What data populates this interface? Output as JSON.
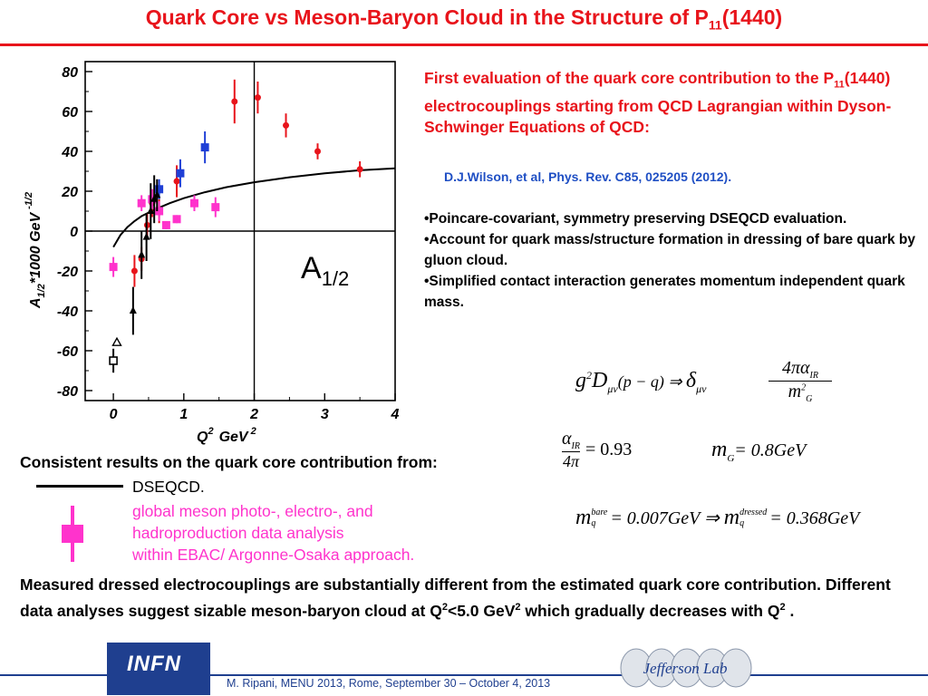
{
  "title": {
    "main": "Quark Core vs Meson-Baryon Cloud  in the Structure of P",
    "sub": "11",
    "tail": "(1440)"
  },
  "chart_data": {
    "type": "scatter",
    "xlabel_base": "Q",
    "xlabel_sup": "2",
    "xlabel_unit": "GeV",
    "xlabel_unit_sup": "2",
    "ylabel_parts": [
      "A",
      "1/2",
      "*1000 GeV",
      "-1/2"
    ],
    "annotation": "A",
    "annotation_sub": "1/2",
    "xlim": [
      -0.4,
      4
    ],
    "ylim": [
      -85,
      85
    ],
    "x_ticks": [
      "0",
      "1",
      "2",
      "3",
      "4"
    ],
    "y_ticks": [
      "80",
      "60",
      "40",
      "20",
      "0",
      "-20",
      "-40",
      "-60",
      "-80"
    ],
    "vertical_line_x": 2.0,
    "series": [
      {
        "marker": "circle",
        "color": "#e8141b",
        "points": [
          {
            "x": 0.3,
            "y": -20,
            "err": 8
          },
          {
            "x": 0.4,
            "y": -14,
            "err": 6
          },
          {
            "x": 0.48,
            "y": 3,
            "err": 6
          },
          {
            "x": 0.55,
            "y": 14,
            "err": 7
          },
          {
            "x": 0.65,
            "y": 10,
            "err": 6
          },
          {
            "x": 0.9,
            "y": 25,
            "err": 8
          },
          {
            "x": 1.72,
            "y": 65,
            "err": 11
          },
          {
            "x": 2.05,
            "y": 67,
            "err": 8
          },
          {
            "x": 2.45,
            "y": 53,
            "err": 6
          },
          {
            "x": 2.9,
            "y": 40,
            "err": 4
          },
          {
            "x": 3.5,
            "y": 31,
            "err": 4
          }
        ]
      },
      {
        "marker": "square",
        "color": "#ff33cc",
        "points": [
          {
            "x": 0.0,
            "y": -18,
            "err": 5
          },
          {
            "x": 0.4,
            "y": 14,
            "err": 4
          },
          {
            "x": 0.55,
            "y": 16,
            "err": 5
          },
          {
            "x": 0.65,
            "y": 10,
            "err": 5
          },
          {
            "x": 0.75,
            "y": 3,
            "err": 2
          },
          {
            "x": 0.9,
            "y": 6,
            "err": 2
          },
          {
            "x": 1.15,
            "y": 14,
            "err": 4
          },
          {
            "x": 1.45,
            "y": 12,
            "err": 5
          }
        ]
      },
      {
        "marker": "square",
        "color": "#1f3fd6",
        "points": [
          {
            "x": 0.65,
            "y": 21,
            "err": 5
          },
          {
            "x": 0.95,
            "y": 29,
            "err": 7
          },
          {
            "x": 1.3,
            "y": 42,
            "err": 8
          }
        ]
      },
      {
        "marker": "filled-triangle",
        "color": "#000000",
        "points": [
          {
            "x": 0.28,
            "y": -40,
            "err": 12
          },
          {
            "x": 0.4,
            "y": -12,
            "err": 12
          },
          {
            "x": 0.47,
            "y": -3,
            "err": 12
          },
          {
            "x": 0.53,
            "y": 10,
            "err": 14
          },
          {
            "x": 0.58,
            "y": 16,
            "err": 12
          },
          {
            "x": 0.62,
            "y": 18,
            "err": 8
          }
        ]
      },
      {
        "marker": "open-square",
        "color": "#000000",
        "points": [
          {
            "x": 0.0,
            "y": -65,
            "err": 6
          }
        ]
      },
      {
        "marker": "open-triangle",
        "color": "#000000",
        "points": [
          {
            "x": 0.05,
            "y": -56,
            "err": 0
          }
        ]
      }
    ],
    "curve": {
      "name": "DSEQCD",
      "x": [
        0.0,
        0.1,
        0.2,
        0.3,
        0.4,
        0.6,
        0.8,
        1.0,
        1.3,
        1.6,
        2.0,
        2.5,
        3.0,
        3.5,
        4.0
      ],
      "y": [
        -8,
        -2,
        2,
        5,
        7.5,
        11,
        14,
        16.5,
        19.5,
        22,
        24.5,
        27,
        29,
        30.5,
        31.5
      ]
    }
  },
  "right": {
    "heading_a": "First evaluation of the quark core contribution to the P",
    "heading_sub": "11",
    "heading_b": "(1440) electrocouplings starting from QCD Lagrangian within Dyson-Schwinger Equations of QCD:",
    "citation": "D.J.Wilson, et al, Phys. Rev. C85, 025205 (2012).",
    "bullets": [
      "•Poincare-covariant, symmetry preserving DSEQCD evaluation.",
      "•Account for quark mass/structure formation in dressing of bare quark by gluon cloud.",
      "•Simplified contact interaction generates  momentum independent quark mass."
    ]
  },
  "equations": {
    "eq1_lhs": "g",
    "eq1_lhs_sup": "2",
    "eq1_D": "D",
    "eq1_D_sub": "μν",
    "eq1_arg": "(p − q) ⇒ ",
    "eq1_delta": "δ",
    "eq1_delta_sub": "μν",
    "eq1_num": "4π",
    "eq1_alpha": "α",
    "eq1_alpha_sub": "IR",
    "eq1_den": "m",
    "eq1_den_sup": "2",
    "eq1_den_sub": "G",
    "eq2_alpha": "α",
    "eq2_alpha_sub": "IR",
    "eq2_den": "4π",
    "eq2_rhs": "= 0.93",
    "eq3_m": "m",
    "eq3_sub": "G",
    "eq3_rhs": "= 0.8GeV",
    "eq4_m": "m",
    "eq4_sup": "bare",
    "eq4_sub": "q",
    "eq4_mid": "= 0.007GeV ⇒ ",
    "eq4_m2": "m",
    "eq4_sup2": "dressed",
    "eq4_sub2": "q",
    "eq4_rhs": "= 0.368GeV"
  },
  "consistent": {
    "heading": "Consistent results on the quark core contribution from:",
    "line_label": "DSEQCD.",
    "marker_label_lines": [
      "global meson photo-, electro-, and",
      "hadroproduction  data analysis",
      "within EBAC/ Argonne-Osaka approach."
    ]
  },
  "conclusion": {
    "part1": "Measured dressed electrocouplings are substantially  different from the  estimated quark core contribution. Different  data analyses suggest  sizable meson-baryon cloud at Q",
    "sup1": "2",
    "part2": "<5.0 GeV",
    "sup2": "2",
    "part3": " which  gradually decreases with Q",
    "sup3": "2",
    "part4": " ."
  },
  "footer": {
    "text": "M. Ripani, MENU 2013, Rome, September 30 – October 4, 2013",
    "logo_left": "INFN",
    "logo_right": "Jefferson Lab"
  },
  "colors": {
    "title_red": "#e8141b",
    "citation_blue": "#1f4fc4",
    "magenta": "#ff33cc",
    "footer_blue": "#1f3f8f"
  }
}
